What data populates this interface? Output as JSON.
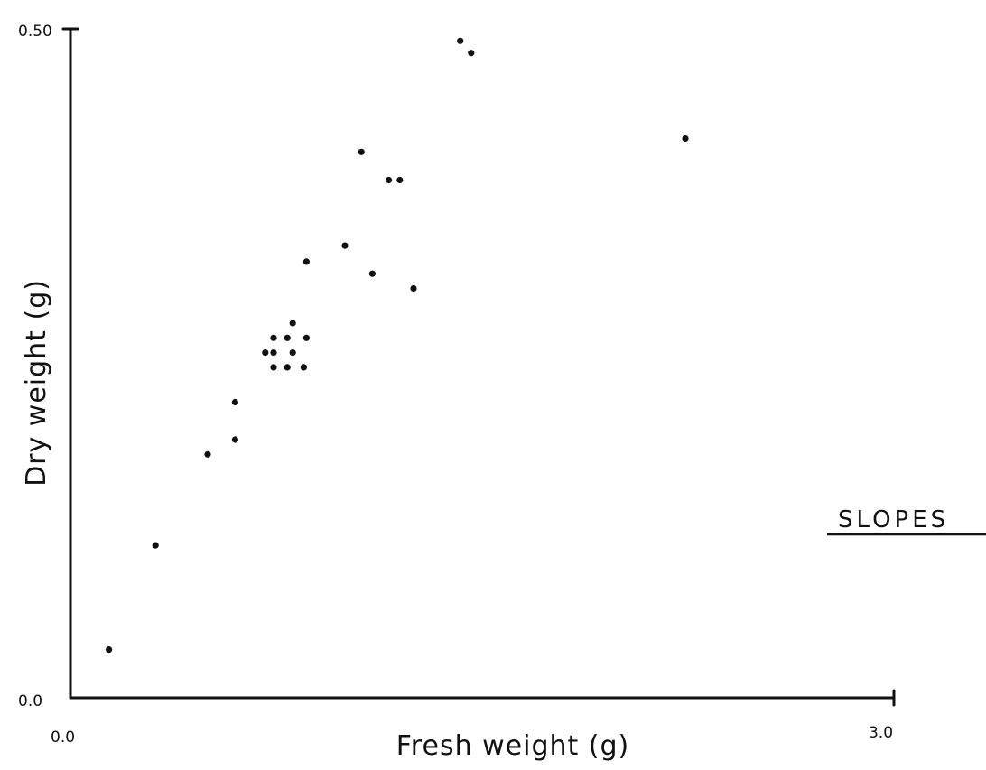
{
  "chart_data": {
    "type": "scatter",
    "xlabel": "Fresh weight (g)",
    "ylabel": "Dry weight (g)",
    "xlim": [
      0.0,
      3.0
    ],
    "ylim": [
      0.0,
      0.5
    ],
    "x_tick_labels": [
      "0.0",
      "3.0"
    ],
    "y_tick_labels": [
      "0.0",
      "0.50"
    ],
    "grid": false,
    "annotation": "SLOPES",
    "points": [
      {
        "x": 0.14,
        "y": 0.036
      },
      {
        "x": 0.31,
        "y": 0.114
      },
      {
        "x": 0.5,
        "y": 0.182
      },
      {
        "x": 0.6,
        "y": 0.193
      },
      {
        "x": 0.6,
        "y": 0.221
      },
      {
        "x": 0.71,
        "y": 0.258
      },
      {
        "x": 0.74,
        "y": 0.258
      },
      {
        "x": 0.74,
        "y": 0.247
      },
      {
        "x": 0.74,
        "y": 0.269
      },
      {
        "x": 0.79,
        "y": 0.269
      },
      {
        "x": 0.79,
        "y": 0.247
      },
      {
        "x": 0.81,
        "y": 0.258
      },
      {
        "x": 0.81,
        "y": 0.28
      },
      {
        "x": 0.85,
        "y": 0.247
      },
      {
        "x": 0.86,
        "y": 0.269
      },
      {
        "x": 0.86,
        "y": 0.326
      },
      {
        "x": 1.0,
        "y": 0.338
      },
      {
        "x": 1.06,
        "y": 0.408
      },
      {
        "x": 1.1,
        "y": 0.317
      },
      {
        "x": 1.16,
        "y": 0.387
      },
      {
        "x": 1.2,
        "y": 0.387
      },
      {
        "x": 1.25,
        "y": 0.306
      },
      {
        "x": 1.42,
        "y": 0.491
      },
      {
        "x": 1.46,
        "y": 0.482
      },
      {
        "x": 2.24,
        "y": 0.418
      }
    ]
  }
}
